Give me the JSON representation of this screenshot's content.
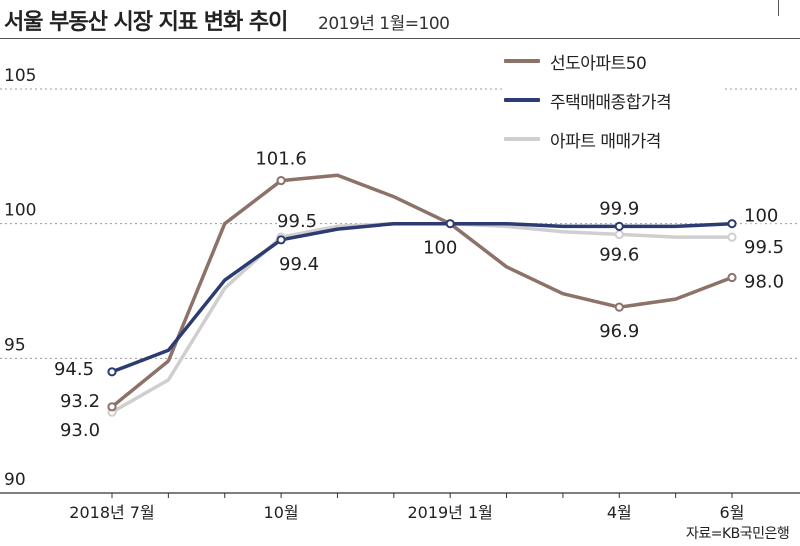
{
  "header": {
    "title": "서울 부동산 시장 지표 변화 추이",
    "subtitle": "2019년 1월=100"
  },
  "source": "자료=KB국민은행",
  "chart_data": {
    "type": "line",
    "title": "서울 부동산 시장 지표 변화 추이",
    "subtitle": "2019년 1월=100",
    "xlabel": "",
    "ylabel": "",
    "ylim": [
      90,
      105
    ],
    "yticks": [
      90,
      95,
      100,
      105
    ],
    "x_tick_labels": [
      {
        "index": 0,
        "label": "2018년 7월"
      },
      {
        "index": 3,
        "label": "10월"
      },
      {
        "index": 6,
        "label": "2019년 1월"
      },
      {
        "index": 9,
        "label": "4월"
      },
      {
        "index": 11,
        "label": "6월"
      }
    ],
    "x": [
      "2018-07",
      "2018-08",
      "2018-09",
      "2018-10",
      "2018-11",
      "2018-12",
      "2019-01",
      "2019-02",
      "2019-03",
      "2019-04",
      "2019-05",
      "2019-06"
    ],
    "legend_position": "top-right",
    "series": [
      {
        "name": "선도아파트50",
        "color": "#8c7268",
        "values": [
          93.2,
          94.9,
          100.0,
          101.6,
          101.8,
          101.0,
          100.0,
          98.4,
          97.4,
          96.9,
          97.2,
          98.0
        ],
        "markers": [
          0,
          3,
          9,
          11
        ]
      },
      {
        "name": "주택매매종합가격",
        "color": "#2c3c72",
        "values": [
          94.5,
          95.3,
          97.9,
          99.4,
          99.8,
          100.0,
          100.0,
          100.0,
          99.9,
          99.9,
          99.9,
          100.0
        ],
        "markers": [
          0,
          3,
          6,
          9,
          11
        ]
      },
      {
        "name": "아파트 매매가격",
        "color": "#cfcfcf",
        "values": [
          93.0,
          94.2,
          97.6,
          99.5,
          99.9,
          100.0,
          100.0,
          99.9,
          99.7,
          99.6,
          99.5,
          99.5
        ],
        "markers": [
          0,
          3,
          9,
          11
        ]
      }
    ],
    "data_labels": [
      {
        "series": 0,
        "index": 3,
        "text": "101.6"
      },
      {
        "series": 1,
        "index": 3,
        "text": "99.4"
      },
      {
        "series": 2,
        "index": 3,
        "text": "99.5"
      },
      {
        "series": 1,
        "index": 0,
        "text": "94.5"
      },
      {
        "series": 0,
        "index": 0,
        "text": "93.2"
      },
      {
        "series": 2,
        "index": 0,
        "text": "93.0"
      },
      {
        "series": 1,
        "index": 6,
        "text": "100"
      },
      {
        "series": 1,
        "index": 9,
        "text": "99.9"
      },
      {
        "series": 2,
        "index": 9,
        "text": "99.6"
      },
      {
        "series": 0,
        "index": 9,
        "text": "96.9"
      },
      {
        "series": 1,
        "index": 11,
        "text": "100"
      },
      {
        "series": 2,
        "index": 11,
        "text": "99.5"
      },
      {
        "series": 0,
        "index": 11,
        "text": "98.0"
      }
    ]
  }
}
